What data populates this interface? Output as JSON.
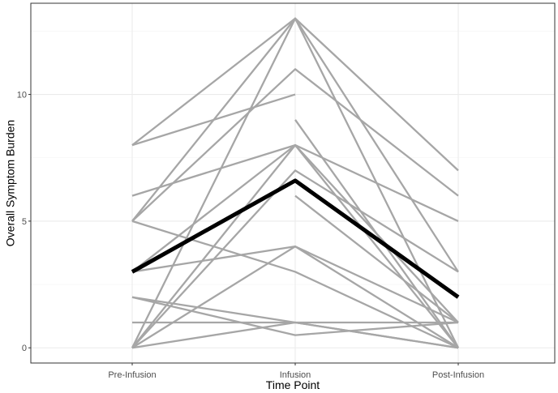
{
  "chart_data": {
    "type": "line",
    "title": "",
    "xlabel": "Time Point",
    "ylabel": "Overall Symptom Burden",
    "categories": [
      "Pre-Infusion",
      "Infusion",
      "Post-Infusion"
    ],
    "y_ticks": [
      0,
      5,
      10
    ],
    "y_tick_labels": [
      "0",
      "5",
      "10"
    ],
    "ylim": [
      -0.6,
      13.6
    ],
    "grid": true,
    "legend": "none",
    "individual_series": [
      {
        "values": [
          0,
          13,
          0
        ]
      },
      {
        "values": [
          5,
          13,
          3
        ]
      },
      {
        "values": [
          5,
          11,
          6
        ]
      },
      {
        "values": [
          8,
          13,
          7
        ]
      },
      {
        "values": [
          8,
          10,
          null
        ]
      },
      {
        "values": [
          6,
          8,
          5
        ]
      },
      {
        "values": [
          0,
          7,
          3
        ]
      },
      {
        "values": [
          0,
          8,
          0
        ]
      },
      {
        "values": [
          3,
          8,
          1
        ]
      },
      {
        "values": [
          null,
          9,
          0
        ]
      },
      {
        "values": [
          null,
          6,
          1
        ]
      },
      {
        "values": [
          2,
          0.5,
          1
        ]
      },
      {
        "values": [
          3,
          4,
          0
        ]
      },
      {
        "values": [
          0,
          4,
          1
        ]
      },
      {
        "values": [
          5,
          3,
          0
        ]
      },
      {
        "values": [
          1,
          1,
          1
        ]
      },
      {
        "values": [
          2,
          1,
          0
        ]
      },
      {
        "values": [
          0,
          1,
          0
        ]
      }
    ],
    "mean_series": {
      "values": [
        3,
        6.6,
        2
      ]
    },
    "colors": {
      "individual": "#a6a6a6",
      "mean": "#000000",
      "grid_major": "#ebebeb",
      "grid_minor": "#f5f5f5",
      "panel_border": "#333333"
    }
  }
}
